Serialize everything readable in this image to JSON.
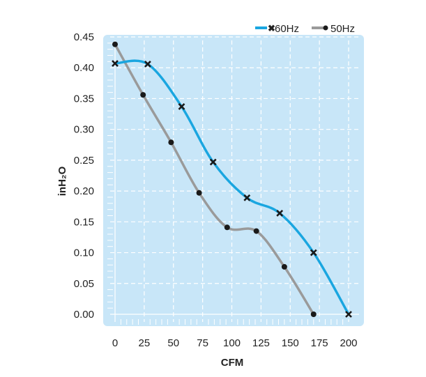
{
  "chart_data": {
    "type": "line",
    "xlabel": "CFM",
    "ylabel": "inH₂O",
    "xlim": [
      0,
      200
    ],
    "ylim": [
      0,
      0.45
    ],
    "xticks": [
      "0",
      "25",
      "50",
      "75",
      "100",
      "125",
      "150",
      "175",
      "200"
    ],
    "yticks": [
      "0.00",
      "0.05",
      "0.10",
      "0.15",
      "0.20",
      "0.25",
      "0.30",
      "0.35",
      "0.40",
      "0.45"
    ],
    "grid": true,
    "legend_position": "top-right",
    "series": [
      {
        "name": "60Hz",
        "color": "#1aa6e0",
        "marker": "cross",
        "x": [
          0,
          28,
          57,
          84,
          113,
          141,
          170,
          200
        ],
        "y": [
          0.407,
          0.406,
          0.337,
          0.247,
          0.189,
          0.164,
          0.1,
          0.0
        ]
      },
      {
        "name": "50Hz",
        "color": "#9a9a9a",
        "marker": "dot",
        "x": [
          0,
          24,
          48,
          72,
          96,
          121,
          145,
          170
        ],
        "y": [
          0.438,
          0.356,
          0.279,
          0.197,
          0.141,
          0.135,
          0.077,
          0.0
        ]
      }
    ],
    "background": "#c8e6f8"
  }
}
